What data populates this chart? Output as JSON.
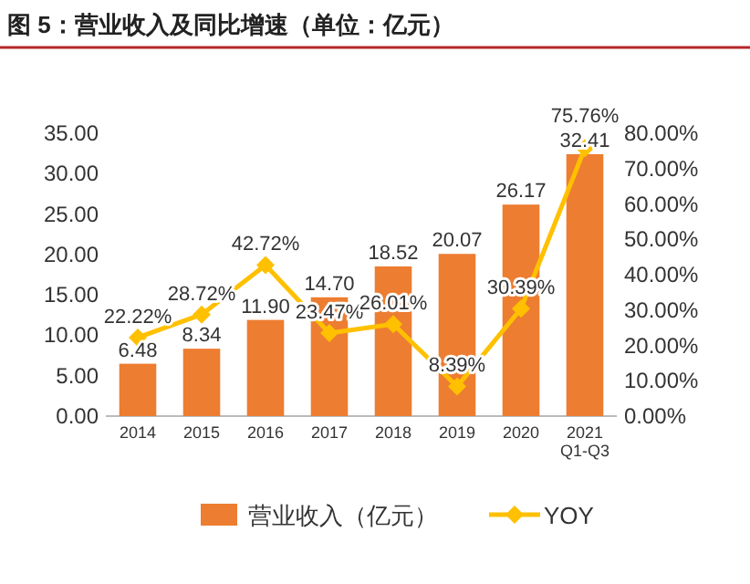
{
  "chart_data": {
    "type": "bar",
    "title": "图 5：营业收入及同比增速（单位：亿元）",
    "categories": [
      "2014",
      "2015",
      "2016",
      "2017",
      "2018",
      "2019",
      "2020",
      "2021 Q1-Q3"
    ],
    "series": [
      {
        "name": "营业收入（亿元）",
        "color": "#ed7d31",
        "values": [
          6.48,
          8.34,
          11.9,
          14.7,
          18.52,
          20.07,
          26.17,
          32.41
        ],
        "value_labels": [
          "6.48",
          "8.34",
          "11.90",
          "14.70",
          "18.52",
          "20.07",
          "26.17",
          "32.41"
        ]
      },
      {
        "name": "YOY",
        "type": "line",
        "axis": "y2",
        "color": "#ffc000",
        "marker": "diamond",
        "values": [
          22.22,
          28.72,
          42.72,
          23.47,
          26.01,
          8.39,
          30.39,
          75.76
        ],
        "value_labels": [
          "22.22%",
          "28.72%",
          "42.72%",
          "23.47%",
          "26.01%",
          "8.39%",
          "30.39%",
          "75.76%"
        ]
      }
    ],
    "ylim": [
      0,
      35
    ],
    "yticks": [
      {
        "value": 0,
        "label": "0.00"
      },
      {
        "value": 5,
        "label": "5.00"
      },
      {
        "value": 10,
        "label": "10.00"
      },
      {
        "value": 15,
        "label": "15.00"
      },
      {
        "value": 20,
        "label": "20.00"
      },
      {
        "value": 25,
        "label": "25.00"
      },
      {
        "value": 30,
        "label": "30.00"
      },
      {
        "value": 35,
        "label": "35.00"
      }
    ],
    "y2lim": [
      0,
      80
    ],
    "y2ticks": [
      {
        "value": 0,
        "label": "0.00%"
      },
      {
        "value": 10,
        "label": "10.00%"
      },
      {
        "value": 20,
        "label": "20.00%"
      },
      {
        "value": 30,
        "label": "30.00%"
      },
      {
        "value": 40,
        "label": "40.00%"
      },
      {
        "value": 50,
        "label": "50.00%"
      },
      {
        "value": 60,
        "label": "60.00%"
      },
      {
        "value": 70,
        "label": "70.00%"
      },
      {
        "value": 80,
        "label": "80.00%"
      }
    ],
    "legend": "bottom"
  }
}
